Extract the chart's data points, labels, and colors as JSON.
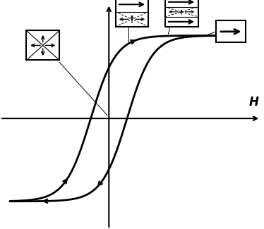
{
  "background_color": "#ffffff",
  "xlim": [
    -3.8,
    4.2
  ],
  "ylim": [
    -2.8,
    3.0
  ],
  "axis_origin_x": -0.5,
  "axis_origin_y": 0.0,
  "upper_shift": -0.3,
  "lower_shift": 0.5,
  "sat_M": 2.2,
  "tanh_scale": 1.1
}
